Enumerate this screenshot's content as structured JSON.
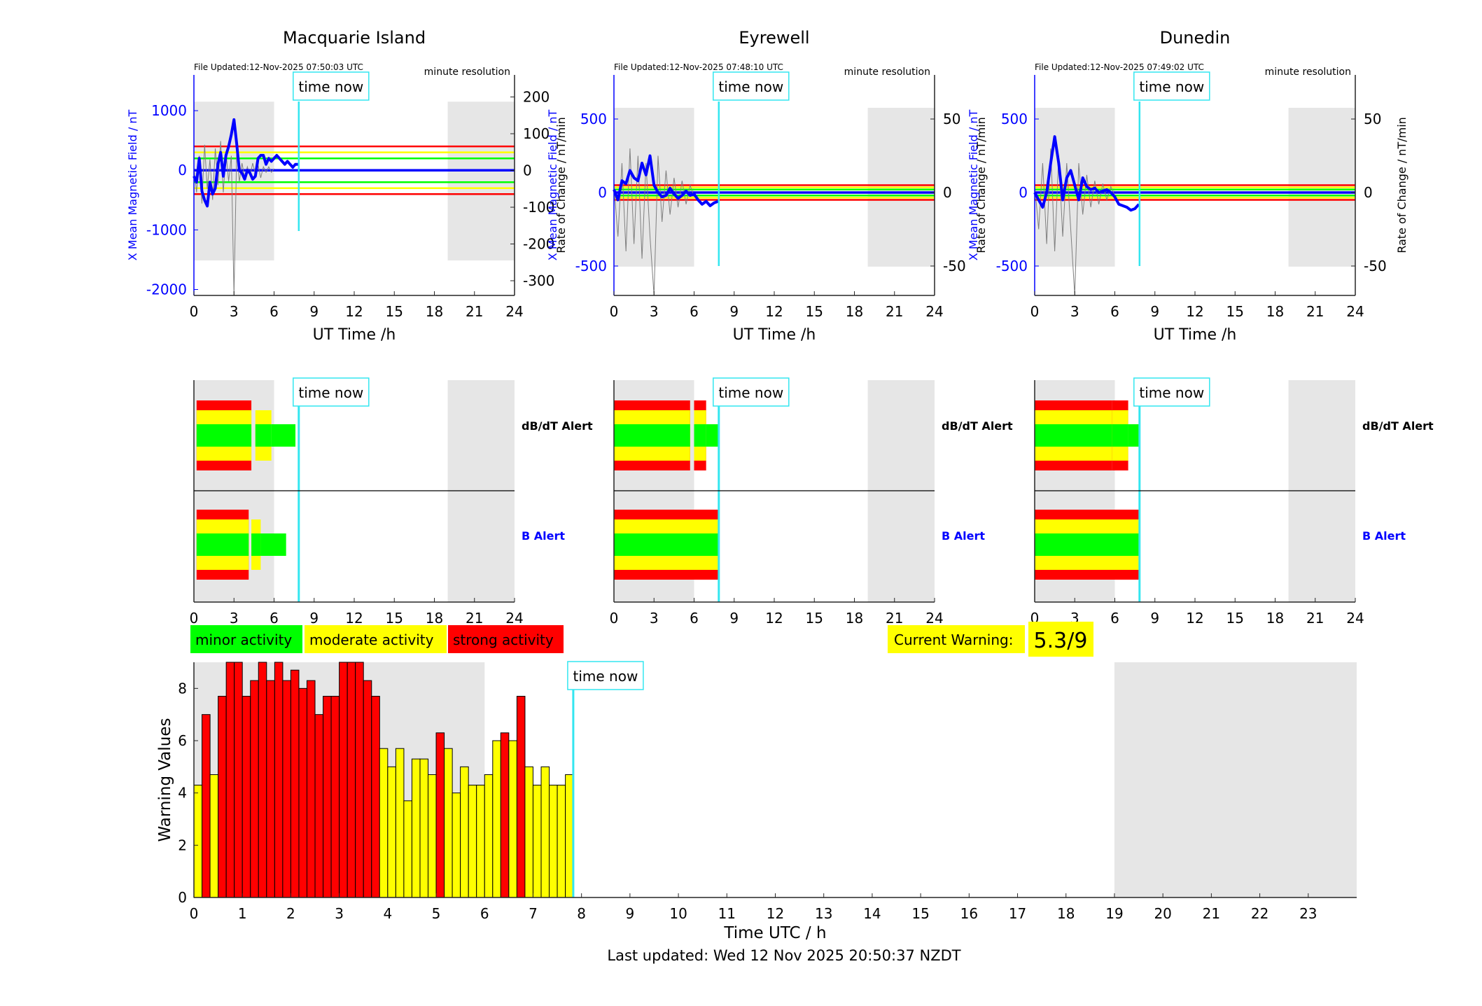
{
  "colors": {
    "minor": "#00ff00",
    "moderate": "#ffff00",
    "strong": "#ff0000",
    "daylight": "#e6e6e6",
    "now": "#33e6f0",
    "field": "#0000ff",
    "deriv": "#7f7f7f",
    "axis": "#262626",
    "blue_text": "#0000ff"
  },
  "panels": [
    {
      "title": "Macquarie Island",
      "file_updated": "File Updated:12-Nov-2025 07:50:03 UTC",
      "resolution": "minute resolution",
      "ylabel_left": "X Mean Magnetic Field / nT",
      "ylabel_right": "Rate of Change / nT/min",
      "left_ticks": [
        "1000",
        "0",
        "-1000",
        "-2000"
      ],
      "right_ticks": [
        "200",
        "100",
        "0",
        "-100",
        "-200",
        "-300"
      ],
      "now_label": "time now",
      "dbdt_label": "dB/dT Alert",
      "b_label": "B Alert"
    },
    {
      "title": "Eyrewell",
      "file_updated": "File Updated:12-Nov-2025 07:48:10 UTC",
      "resolution": "minute resolution",
      "ylabel_left": "X Mean Magnetic Field / nT",
      "ylabel_right": "Rate of Change / nT/min",
      "left_ticks": [
        "500",
        "0",
        "-500"
      ],
      "right_ticks": [
        "50",
        "0",
        "-50"
      ],
      "now_label": "time now",
      "dbdt_label": "dB/dT Alert",
      "b_label": "B Alert"
    },
    {
      "title": "Dunedin",
      "file_updated": "File Updated:12-Nov-2025 07:49:02 UTC",
      "resolution": "minute resolution",
      "ylabel_left": "X Mean Magnetic Field / nT",
      "ylabel_right": "Rate of Change / nT/min",
      "left_ticks": [
        "500",
        "0",
        "-500"
      ],
      "right_ticks": [
        "50",
        "0",
        "-50"
      ],
      "now_label": "time now",
      "dbdt_label": "dB/dT Alert",
      "b_label": "B Alert"
    }
  ],
  "ut_xlabel": "UT Time /h",
  "ut_ticks": [
    "0",
    "3",
    "6",
    "9",
    "12",
    "15",
    "18",
    "21",
    "24"
  ],
  "legend": [
    "minor activity",
    "moderate activity",
    "strong activity"
  ],
  "current_warning_label": "Current Warning:",
  "current_warning_value": "5.3/9",
  "bottom": {
    "ylabel": "Warning Values",
    "xlabel": "Time UTC / h",
    "yticks": [
      "0",
      "2",
      "4",
      "6",
      "8"
    ],
    "xticks": [
      "0",
      "1",
      "2",
      "3",
      "4",
      "5",
      "6",
      "7",
      "8",
      "9",
      "10",
      "11",
      "12",
      "13",
      "14",
      "15",
      "16",
      "17",
      "18",
      "19",
      "20",
      "21",
      "22",
      "23"
    ],
    "now_label": "time now"
  },
  "footer": "Last updated: Wed 12 Nov 2025 20:50:37 NZDT",
  "chart_data": [
    {
      "type": "line",
      "title": "Macquarie Island",
      "x_range": [
        0,
        24
      ],
      "ylim_left": [
        -2100,
        1600
      ],
      "ylim_right": [
        -340,
        260
      ],
      "daylight_hours": [
        [
          0,
          6
        ],
        [
          19,
          24
        ]
      ],
      "now_hour": 7.85,
      "thresholds_nT": {
        "minor": 200,
        "moderate": 300,
        "strong": 400
      },
      "field_series": {
        "name": "X Mean Magnetic Field",
        "x": [
          0,
          0.2,
          0.4,
          0.6,
          0.8,
          1.0,
          1.2,
          1.4,
          1.6,
          1.8,
          2.0,
          2.2,
          2.4,
          2.6,
          2.8,
          3.0,
          3.2,
          3.4,
          3.6,
          3.8,
          4.0,
          4.2,
          4.4,
          4.6,
          4.8,
          5.0,
          5.2,
          5.4,
          5.6,
          5.8,
          6.0,
          6.2,
          6.4,
          6.6,
          6.8,
          7.0,
          7.2,
          7.4,
          7.6,
          7.8
        ],
        "y": [
          -100,
          -200,
          200,
          -350,
          -500,
          -600,
          -200,
          -400,
          -300,
          100,
          300,
          -100,
          250,
          400,
          600,
          850,
          450,
          0,
          -50,
          -150,
          0,
          -50,
          -150,
          -100,
          200,
          250,
          250,
          100,
          200,
          150,
          200,
          250,
          200,
          150,
          100,
          150,
          100,
          50,
          100,
          100
        ]
      },
      "deriv_series": {
        "name": "Rate of Change",
        "x": [
          0,
          0.2,
          0.4,
          0.6,
          0.8,
          1.0,
          1.2,
          1.4,
          1.6,
          1.8,
          2.0,
          2.2,
          2.4,
          2.6,
          2.8,
          3.0,
          3.2,
          3.4,
          3.6,
          3.8,
          4.0,
          4.2,
          4.4,
          4.6,
          4.8,
          5.0,
          5.2,
          5.4,
          5.6,
          5.8,
          6.0
        ],
        "y": [
          10,
          -60,
          40,
          -90,
          70,
          -50,
          30,
          -80,
          60,
          -40,
          80,
          -60,
          50,
          -30,
          40,
          -340,
          50,
          -30,
          20,
          -20,
          10,
          -15,
          20,
          -10,
          15,
          -20,
          10,
          -5,
          10,
          -5,
          5
        ]
      }
    },
    {
      "type": "line",
      "title": "Eyrewell",
      "x_range": [
        0,
        24
      ],
      "ylim_left": [
        -700,
        800
      ],
      "ylim_right": [
        -70,
        80
      ],
      "daylight_hours": [
        [
          0,
          6
        ],
        [
          19,
          24
        ]
      ],
      "now_hour": 7.85,
      "thresholds_nT": {
        "minor": 20,
        "moderate": 35,
        "strong": 50
      },
      "field_series": {
        "name": "X Mean Magnetic Field",
        "x": [
          0,
          0.3,
          0.6,
          0.9,
          1.2,
          1.5,
          1.8,
          2.1,
          2.4,
          2.7,
          3.0,
          3.3,
          3.6,
          3.9,
          4.2,
          4.5,
          4.8,
          5.1,
          5.4,
          5.7,
          6.0,
          6.3,
          6.6,
          6.9,
          7.2,
          7.5,
          7.8
        ],
        "y": [
          20,
          -50,
          80,
          60,
          150,
          100,
          80,
          200,
          120,
          250,
          50,
          0,
          -30,
          -20,
          30,
          -10,
          -40,
          -20,
          10,
          -20,
          -10,
          -50,
          -80,
          -60,
          -90,
          -70,
          -60
        ]
      },
      "deriv_series": {
        "name": "Rate of Change",
        "x": [
          0,
          0.3,
          0.6,
          0.9,
          1.2,
          1.5,
          1.8,
          2.1,
          2.4,
          2.7,
          3.0,
          3.3,
          3.6,
          3.9,
          4.2,
          4.5,
          4.8,
          5.1,
          5.4,
          5.7,
          6.0
        ],
        "y": [
          5,
          -30,
          20,
          -40,
          30,
          -35,
          25,
          -45,
          20,
          -30,
          -70,
          25,
          -20,
          15,
          -15,
          10,
          -10,
          8,
          -8,
          5,
          -3
        ]
      }
    },
    {
      "type": "line",
      "title": "Dunedin",
      "x_range": [
        0,
        24
      ],
      "ylim_left": [
        -700,
        800
      ],
      "ylim_right": [
        -70,
        80
      ],
      "daylight_hours": [
        [
          0,
          6
        ],
        [
          19,
          24
        ]
      ],
      "now_hour": 7.85,
      "thresholds_nT": {
        "minor": 20,
        "moderate": 35,
        "strong": 50
      },
      "field_series": {
        "name": "X Mean Magnetic Field",
        "x": [
          0,
          0.3,
          0.6,
          0.9,
          1.2,
          1.5,
          1.8,
          2.1,
          2.4,
          2.7,
          3.0,
          3.3,
          3.6,
          3.9,
          4.2,
          4.5,
          4.8,
          5.1,
          5.4,
          5.7,
          6.0,
          6.3,
          6.6,
          6.9,
          7.2,
          7.5,
          7.8
        ],
        "y": [
          0,
          -50,
          -100,
          0,
          200,
          380,
          200,
          -50,
          100,
          150,
          50,
          -50,
          100,
          40,
          20,
          30,
          0,
          10,
          20,
          0,
          -30,
          -80,
          -90,
          -100,
          -120,
          -110,
          -80
        ]
      },
      "deriv_series": {
        "name": "Rate of Change",
        "x": [
          0,
          0.3,
          0.6,
          0.9,
          1.2,
          1.5,
          1.8,
          2.1,
          2.4,
          2.7,
          3.0,
          3.3,
          3.6,
          3.9,
          4.2,
          4.5,
          4.8,
          5.1,
          5.4,
          5.7,
          6.0
        ],
        "y": [
          5,
          -25,
          20,
          -35,
          30,
          -40,
          25,
          -30,
          20,
          -25,
          -70,
          20,
          -15,
          12,
          -10,
          8,
          -8,
          6,
          -5,
          4,
          -2
        ]
      }
    },
    {
      "type": "bar",
      "title": "Alert bands",
      "x_range": [
        0,
        24
      ],
      "now_hour": 7.85,
      "rows": [
        {
          "station": "Macquarie Island",
          "alert": "dB/dT Alert",
          "segments": [
            [
              0.2,
              4.3,
              "strong"
            ],
            [
              4.6,
              5.8,
              "moderate"
            ],
            [
              5.8,
              7.6,
              "minor"
            ]
          ]
        },
        {
          "station": "Macquarie Island",
          "alert": "B Alert",
          "segments": [
            [
              0.2,
              4.1,
              "strong"
            ],
            [
              4.3,
              5.0,
              "moderate"
            ],
            [
              5.0,
              6.9,
              "minor"
            ]
          ]
        },
        {
          "station": "Eyrewell",
          "alert": "dB/dT Alert",
          "segments": [
            [
              0,
              5.7,
              "strong"
            ],
            [
              6.0,
              6.9,
              "strong"
            ],
            [
              6.9,
              7.8,
              "minor"
            ]
          ]
        },
        {
          "station": "Eyrewell",
          "alert": "B Alert",
          "segments": [
            [
              0,
              7.8,
              "strong"
            ]
          ]
        },
        {
          "station": "Dunedin",
          "alert": "dB/dT Alert",
          "segments": [
            [
              0,
              5.8,
              "strong"
            ],
            [
              5.8,
              7.0,
              "strong"
            ],
            [
              7.0,
              7.8,
              "minor"
            ]
          ]
        },
        {
          "station": "Dunedin",
          "alert": "B Alert",
          "segments": [
            [
              0,
              7.8,
              "strong"
            ]
          ]
        }
      ]
    },
    {
      "type": "bar",
      "title": "Warning Values",
      "xlabel": "Time UTC / h",
      "ylabel": "Warning Values",
      "ylim": [
        0,
        9
      ],
      "x_range": [
        0,
        24
      ],
      "bar_width_h": 0.1667,
      "daylight_hours": [
        [
          0,
          6
        ],
        [
          19,
          24
        ]
      ],
      "now_hour": 7.83,
      "x": [
        0,
        0.167,
        0.333,
        0.5,
        0.667,
        0.833,
        1,
        1.167,
        1.333,
        1.5,
        1.667,
        1.833,
        2,
        2.167,
        2.333,
        2.5,
        2.667,
        2.833,
        3,
        3.167,
        3.333,
        3.5,
        3.667,
        3.833,
        4,
        4.167,
        4.333,
        4.5,
        4.667,
        4.833,
        5,
        5.167,
        5.333,
        5.5,
        5.667,
        5.833,
        6,
        6.167,
        6.333,
        6.5,
        6.667,
        6.833,
        7,
        7.167,
        7.333,
        7.5,
        7.667
      ],
      "values": [
        4.3,
        7.0,
        4.7,
        7.7,
        9.0,
        9.0,
        7.7,
        8.3,
        9.0,
        8.3,
        9.0,
        8.3,
        8.7,
        8.0,
        8.3,
        7.0,
        7.7,
        7.7,
        9.0,
        9.0,
        9.0,
        8.3,
        7.7,
        5.7,
        5.0,
        5.7,
        3.7,
        5.3,
        5.3,
        4.7,
        6.3,
        5.7,
        4.0,
        5.0,
        4.3,
        4.3,
        4.7,
        6.0,
        6.3,
        6.0,
        7.7,
        5.0,
        4.3,
        5.0,
        4.3,
        4.3,
        4.7
      ]
    }
  ]
}
